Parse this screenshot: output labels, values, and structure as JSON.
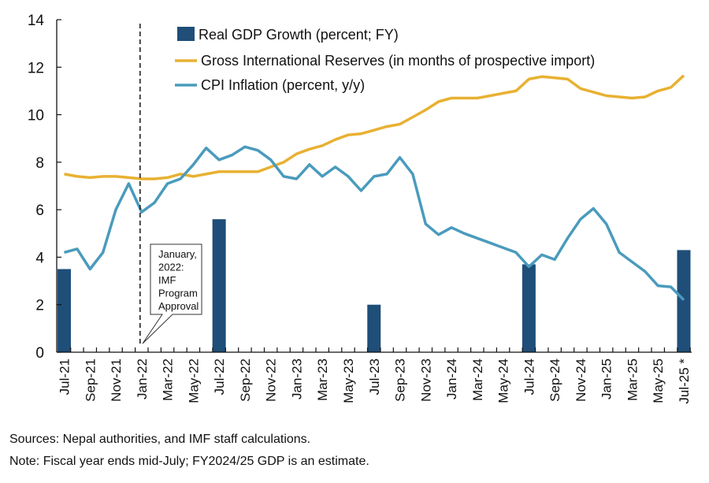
{
  "chart_data": {
    "type": "bar+line",
    "ylim": [
      0,
      14
    ],
    "yticks": [
      0,
      2,
      4,
      6,
      8,
      10,
      12,
      14
    ],
    "grid": false,
    "legend_position": "top",
    "x": [
      "Jul-21",
      "Aug-21",
      "Sep-21",
      "Oct-21",
      "Nov-21",
      "Dec-21",
      "Jan-22",
      "Feb-22",
      "Mar-22",
      "Apr-22",
      "May-22",
      "Jun-22",
      "Jul-22",
      "Aug-22",
      "Sep-22",
      "Oct-22",
      "Nov-22",
      "Dec-22",
      "Jan-23",
      "Feb-23",
      "Mar-23",
      "Apr-23",
      "May-23",
      "Jun-23",
      "Jul-23",
      "Aug-23",
      "Sep-23",
      "Oct-23",
      "Nov-23",
      "Dec-23",
      "Jan-24",
      "Feb-24",
      "Mar-24",
      "Apr-24",
      "May-24",
      "Jun-24",
      "Jul-24",
      "Aug-24",
      "Sep-24",
      "Oct-24",
      "Nov-24",
      "Dec-24",
      "Jan-25",
      "Feb-25",
      "Mar-25",
      "Apr-25",
      "May-25",
      "Jun-25",
      "Jul-25"
    ],
    "tick_labels": [
      "Jul-21",
      "Sep-21",
      "Nov-21",
      "Jan-22",
      "Mar-22",
      "May-22",
      "Jul-22",
      "Sep-22",
      "Nov-22",
      "Jan-23",
      "Mar-23",
      "May-23",
      "Jul-23",
      "Sep-23",
      "Nov-23",
      "Jan-24",
      "Mar-24",
      "May-24",
      "Jul-24",
      "Sep-24",
      "Nov-24",
      "Jan-25",
      "Mar-25",
      "May-25",
      "Jul-25 *"
    ],
    "series": [
      {
        "name": "Real GDP Growth (percent; FY)",
        "type": "bar",
        "color": "#1f4e79",
        "points": [
          {
            "x": "Jul-21",
            "y": 3.5
          },
          {
            "x": "Jul-22",
            "y": 5.6
          },
          {
            "x": "Jul-23",
            "y": 2.0
          },
          {
            "x": "Jul-24",
            "y": 3.7
          },
          {
            "x": "Jul-25",
            "y": 4.3
          }
        ]
      },
      {
        "name": "Gross International Reserves (in months of prospective import)",
        "type": "line",
        "color": "#e8b132",
        "values": [
          7.5,
          7.4,
          7.35,
          7.4,
          7.4,
          7.35,
          7.3,
          7.3,
          7.35,
          7.5,
          7.4,
          7.5,
          7.6,
          7.6,
          7.6,
          7.6,
          7.8,
          8.0,
          8.35,
          8.55,
          8.7,
          8.95,
          9.15,
          9.2,
          9.35,
          9.5,
          9.6,
          9.9,
          10.2,
          10.55,
          10.7,
          10.7,
          10.7,
          10.8,
          10.9,
          11.0,
          11.5,
          11.6,
          11.55,
          11.5,
          11.1,
          10.95,
          10.8,
          10.75,
          10.7,
          10.75,
          11.0,
          11.15,
          11.65
        ]
      },
      {
        "name": "CPI Inflation (percent, y/y)",
        "type": "line",
        "color": "#4a9bbd",
        "values": [
          4.2,
          4.35,
          3.5,
          4.2,
          6.0,
          7.1,
          5.9,
          6.3,
          7.1,
          7.3,
          7.9,
          8.6,
          8.1,
          8.3,
          8.65,
          8.5,
          8.1,
          7.4,
          7.3,
          7.9,
          7.4,
          7.8,
          7.4,
          6.8,
          7.4,
          7.5,
          8.2,
          7.5,
          5.4,
          4.95,
          5.25,
          5.0,
          4.8,
          4.6,
          4.4,
          4.2,
          3.6,
          4.1,
          3.9,
          4.8,
          5.6,
          6.05,
          5.4,
          4.2,
          3.8,
          3.4,
          2.8,
          2.75,
          2.2
        ]
      }
    ],
    "annotation": {
      "x": "Jan-22",
      "text": [
        "January,",
        "2022:",
        "IMF",
        "Program",
        "Approval"
      ]
    }
  },
  "notes": {
    "sources": "Sources: Nepal authorities, and IMF staff calculations.",
    "note": "Note: Fiscal year ends mid-July; FY2024/25 GDP is an estimate."
  }
}
